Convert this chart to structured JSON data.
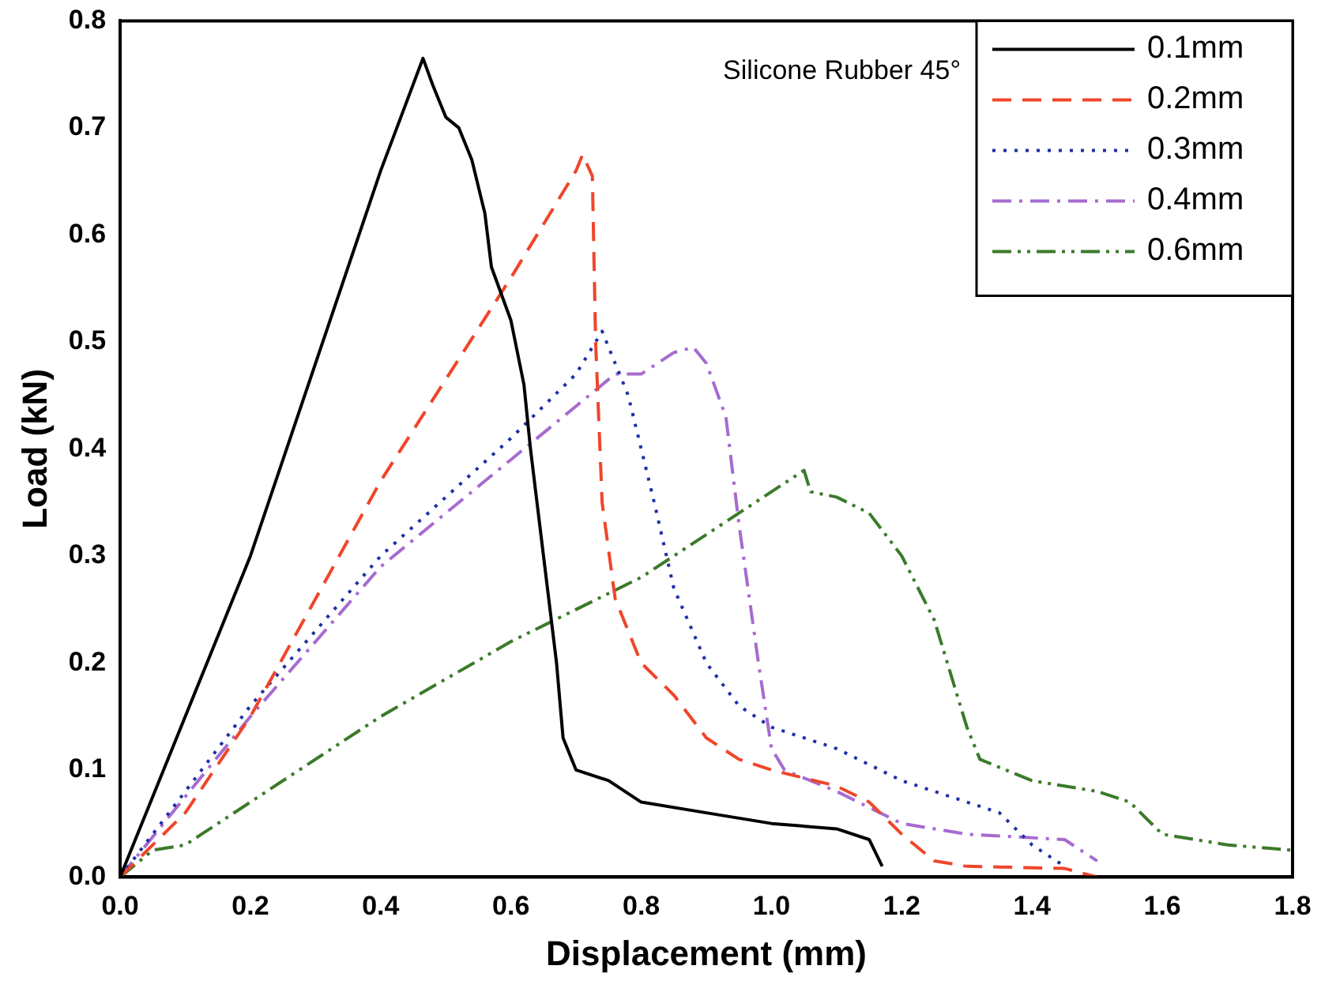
{
  "chart_data": {
    "type": "line",
    "xlabel": "Displacement (mm)",
    "ylabel": "Load (kN)",
    "annotations": [
      "Silicone Rubber 45°"
    ],
    "xlim": [
      0,
      1.8
    ],
    "xticks": [
      {
        "value": 0,
        "label": "0.0"
      },
      0.2,
      0.4,
      0.6,
      0.8,
      {
        "value": 1,
        "label": "1.0"
      },
      1.2,
      1.4,
      1.6,
      1.8
    ],
    "ylim": [
      0,
      0.8
    ],
    "yticks": [
      {
        "value": 0,
        "label": "0.0"
      },
      0.1,
      0.2,
      0.3,
      0.4,
      0.5,
      0.6,
      0.7,
      0.8
    ],
    "grid": false,
    "legend": "top right",
    "marker": "none",
    "series": [
      {
        "name": "0.1mm",
        "color": "#000000",
        "line_style": "solid",
        "x": [
          0,
          0.2,
          0.4,
          0.465,
          0.48,
          0.5,
          0.52,
          0.54,
          0.56,
          0.57,
          0.6,
          0.62,
          0.63,
          0.65,
          0.67,
          0.68,
          0.7,
          0.75,
          0.8,
          0.9,
          1.0,
          1.1,
          1.15,
          1.17
        ],
        "values": [
          0,
          0.3,
          0.66,
          0.765,
          0.74,
          0.71,
          0.7,
          0.67,
          0.62,
          0.57,
          0.52,
          0.46,
          0.4,
          0.3,
          0.2,
          0.13,
          0.1,
          0.09,
          0.07,
          0.06,
          0.05,
          0.045,
          0.035,
          0.01
        ]
      },
      {
        "name": "0.2mm",
        "color": "#f0452a",
        "line_style": "dashed",
        "x": [
          0,
          0.1,
          0.2,
          0.4,
          0.6,
          0.7,
          0.71,
          0.725,
          0.73,
          0.74,
          0.76,
          0.8,
          0.85,
          0.9,
          0.95,
          1.0,
          1.1,
          1.15,
          1.2,
          1.25,
          1.3,
          1.45,
          1.5
        ],
        "values": [
          0,
          0.06,
          0.15,
          0.37,
          0.56,
          0.66,
          0.675,
          0.655,
          0.5,
          0.35,
          0.26,
          0.2,
          0.17,
          0.13,
          0.11,
          0.1,
          0.085,
          0.07,
          0.04,
          0.015,
          0.01,
          0.008,
          0
        ]
      },
      {
        "name": "0.3mm",
        "color": "#1f2fa8",
        "line_style": "dotted",
        "x": [
          0,
          0.2,
          0.4,
          0.6,
          0.7,
          0.74,
          0.76,
          0.78,
          0.82,
          0.85,
          0.9,
          0.95,
          1.0,
          1.1,
          1.2,
          1.3,
          1.35,
          1.4,
          1.45
        ],
        "values": [
          0,
          0.16,
          0.3,
          0.41,
          0.47,
          0.51,
          0.48,
          0.45,
          0.35,
          0.27,
          0.2,
          0.16,
          0.14,
          0.12,
          0.09,
          0.07,
          0.06,
          0.03,
          0.01
        ]
      },
      {
        "name": "0.4mm",
        "color": "#a66bd0",
        "line_style": "dashdot",
        "x": [
          0,
          0.2,
          0.4,
          0.6,
          0.7,
          0.76,
          0.8,
          0.85,
          0.88,
          0.9,
          0.93,
          0.95,
          0.98,
          1.0,
          1.02,
          1.1,
          1.2,
          1.3,
          1.45,
          1.5
        ],
        "values": [
          0,
          0.15,
          0.29,
          0.39,
          0.44,
          0.47,
          0.47,
          0.49,
          0.495,
          0.48,
          0.43,
          0.33,
          0.2,
          0.12,
          0.1,
          0.08,
          0.05,
          0.04,
          0.035,
          0.015
        ]
      },
      {
        "name": "0.6mm",
        "color": "#3b7a2a",
        "line_style": "dashdotdot",
        "x": [
          0,
          0.05,
          0.1,
          0.2,
          0.4,
          0.6,
          0.7,
          0.8,
          0.9,
          1.0,
          1.05,
          1.06,
          1.1,
          1.15,
          1.2,
          1.25,
          1.28,
          1.3,
          1.32,
          1.4,
          1.5,
          1.55,
          1.6,
          1.7,
          1.8
        ],
        "values": [
          0,
          0.025,
          0.03,
          0.07,
          0.15,
          0.22,
          0.25,
          0.28,
          0.32,
          0.36,
          0.38,
          0.36,
          0.355,
          0.34,
          0.3,
          0.24,
          0.18,
          0.14,
          0.11,
          0.09,
          0.08,
          0.07,
          0.04,
          0.03,
          0.025
        ]
      }
    ]
  }
}
